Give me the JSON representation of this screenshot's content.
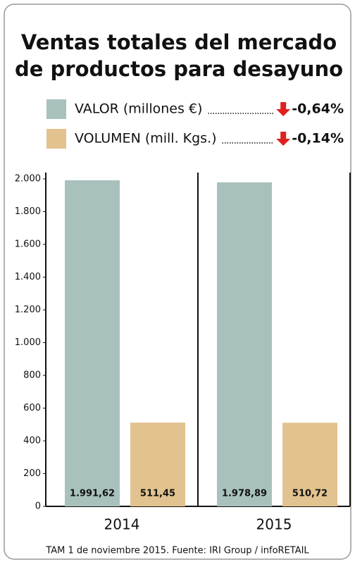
{
  "chart_data": {
    "type": "bar",
    "title": [
      "Ventas totales del mercado",
      "de productos para desayuno"
    ],
    "categories": [
      "2014",
      "2015"
    ],
    "series": [
      {
        "name": "VALOR (millones €)",
        "color": "#a9c1bd",
        "change": "-0,64%",
        "values": [
          1991.62,
          1978.89
        ],
        "value_labels": [
          "1.991,62",
          "1.978,89"
        ]
      },
      {
        "name": "VOLUMEN (mill. Kgs.)",
        "color": "#e2c28e",
        "change": "-0,14%",
        "values": [
          511.45,
          510.72
        ],
        "value_labels": [
          "511,45",
          "510,72"
        ]
      }
    ],
    "ylim": [
      0,
      2000
    ],
    "yticks": [
      0,
      200,
      400,
      600,
      800,
      {
        "value": 1000,
        "label": "1.000"
      },
      {
        "value": 1200,
        "label": "1.200"
      },
      {
        "value": 1400,
        "label": "1.400"
      },
      {
        "value": 1600,
        "label": "1.600"
      },
      {
        "value": 1800,
        "label": "1.800"
      },
      {
        "value": 2000,
        "label": "2.000"
      }
    ],
    "source": "TAM 1 de noviembre 2015. Fuente: IRI Group / infoRETAIL"
  }
}
